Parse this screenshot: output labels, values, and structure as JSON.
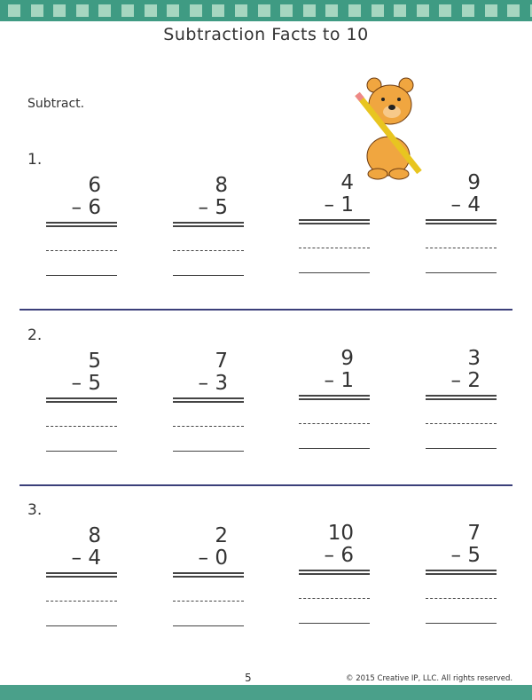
{
  "title": "Subtraction Facts to 10",
  "instructions": "Subtract.",
  "rows": [
    {
      "label": "1.",
      "problems": [
        {
          "a": "6",
          "b": "– 6"
        },
        {
          "a": "8",
          "b": "– 5"
        },
        {
          "a": "4",
          "b": "– 1"
        },
        {
          "a": "9",
          "b": "– 4"
        }
      ]
    },
    {
      "label": "2.",
      "problems": [
        {
          "a": "5",
          "b": "– 5"
        },
        {
          "a": "7",
          "b": "– 3"
        },
        {
          "a": "9",
          "b": "– 1"
        },
        {
          "a": "3",
          "b": "– 2"
        }
      ]
    },
    {
      "label": "3.",
      "problems": [
        {
          "a": "8",
          "b": "– 4"
        },
        {
          "a": "2",
          "b": "– 0"
        },
        {
          "a": "10",
          "b": "– 6"
        },
        {
          "a": "7",
          "b": "– 5"
        }
      ]
    }
  ],
  "footer": {
    "page": "5",
    "copyright": "© 2015 Creative IP, LLC. All rights reserved."
  },
  "colors": {
    "band": "#3f9b83",
    "divider": "#3b3f7a"
  }
}
